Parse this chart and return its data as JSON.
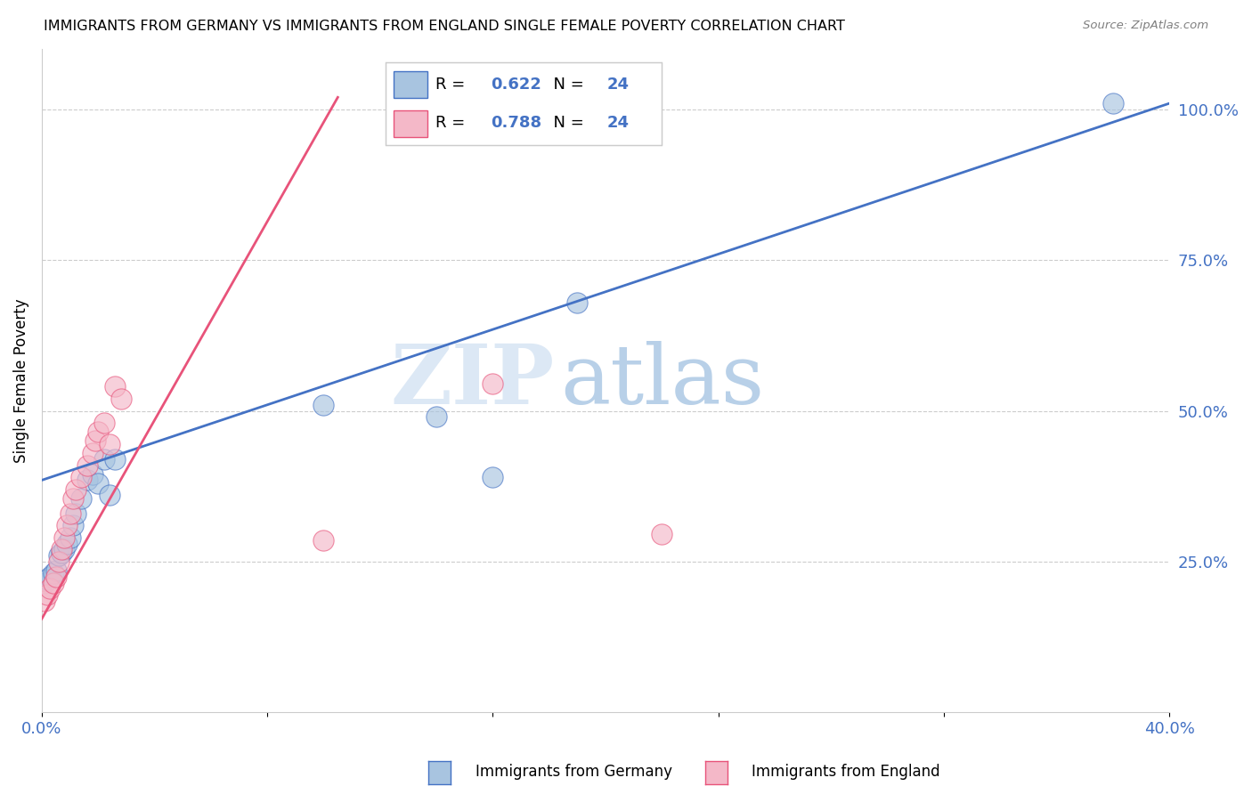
{
  "title": "IMMIGRANTS FROM GERMANY VS IMMIGRANTS FROM ENGLAND SINGLE FEMALE POVERTY CORRELATION CHART",
  "source": "Source: ZipAtlas.com",
  "ylabel": "Single Female Poverty",
  "xlim": [
    0.0,
    0.4
  ],
  "ylim": [
    0.0,
    1.1
  ],
  "x_ticks": [
    0.0,
    0.08,
    0.16,
    0.24,
    0.32,
    0.4
  ],
  "x_tick_labels": [
    "0.0%",
    "",
    "",
    "",
    "",
    "40.0%"
  ],
  "y_ticks_right": [
    0.25,
    0.5,
    0.75,
    1.0
  ],
  "y_tick_labels_right": [
    "25.0%",
    "50.0%",
    "75.0%",
    "100.0%"
  ],
  "R_germany": 0.622,
  "N_germany": 24,
  "R_england": 0.788,
  "N_england": 24,
  "color_germany": "#a8c4e0",
  "color_england": "#f4b8c8",
  "line_color_germany": "#4472c4",
  "line_color_england": "#e8537a",
  "watermark_zip": "ZIP",
  "watermark_atlas": "atlas",
  "background_color": "#ffffff",
  "grid_color": "#cccccc",
  "germany_x": [
    0.001,
    0.002,
    0.003,
    0.004,
    0.005,
    0.006,
    0.007,
    0.008,
    0.009,
    0.01,
    0.011,
    0.012,
    0.014,
    0.016,
    0.018,
    0.02,
    0.022,
    0.024,
    0.026,
    0.1,
    0.14,
    0.16,
    0.19,
    0.38
  ],
  "germany_y": [
    0.215,
    0.22,
    0.225,
    0.23,
    0.235,
    0.26,
    0.265,
    0.27,
    0.28,
    0.29,
    0.31,
    0.33,
    0.355,
    0.385,
    0.395,
    0.38,
    0.42,
    0.36,
    0.42,
    0.51,
    0.49,
    0.39,
    0.68,
    1.01
  ],
  "england_x": [
    0.001,
    0.002,
    0.003,
    0.004,
    0.005,
    0.006,
    0.007,
    0.008,
    0.009,
    0.01,
    0.011,
    0.012,
    0.014,
    0.016,
    0.018,
    0.019,
    0.02,
    0.022,
    0.024,
    0.026,
    0.028,
    0.1,
    0.16,
    0.22
  ],
  "england_y": [
    0.185,
    0.195,
    0.205,
    0.215,
    0.225,
    0.25,
    0.27,
    0.29,
    0.31,
    0.33,
    0.355,
    0.37,
    0.39,
    0.41,
    0.43,
    0.45,
    0.465,
    0.48,
    0.445,
    0.54,
    0.52,
    0.285,
    0.545,
    0.295
  ],
  "blue_line_x": [
    0.0,
    0.4
  ],
  "blue_line_y": [
    0.385,
    1.01
  ],
  "pink_line_x": [
    0.0,
    0.105
  ],
  "pink_line_y": [
    0.155,
    1.02
  ]
}
